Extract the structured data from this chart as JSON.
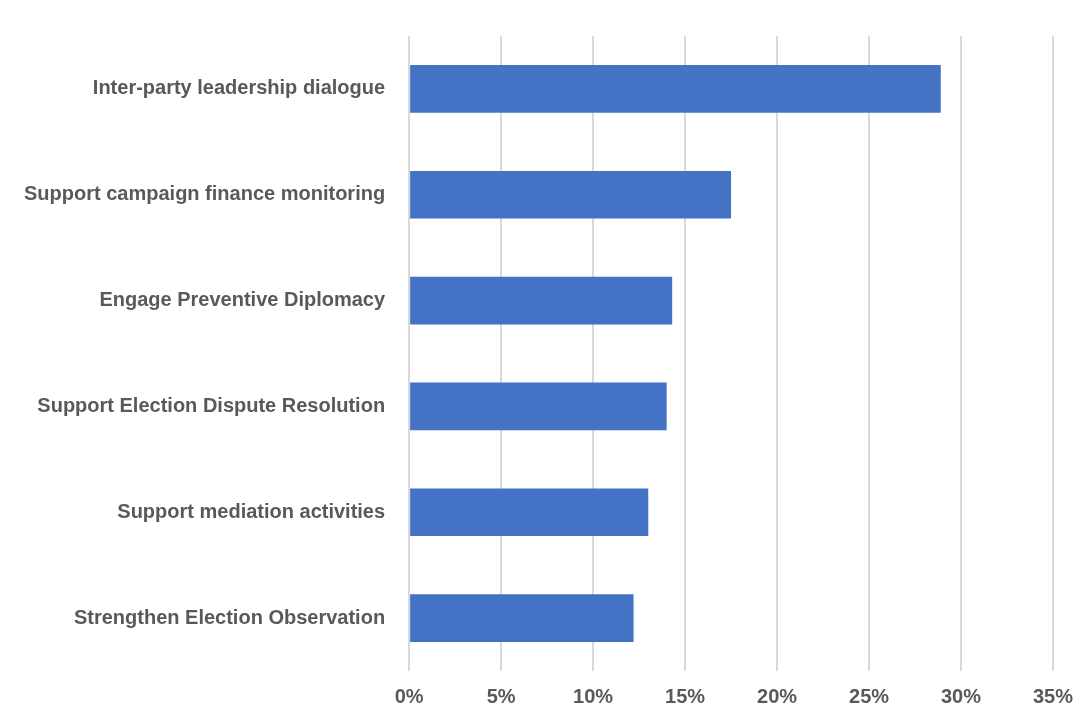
{
  "chart_data": {
    "type": "bar",
    "orientation": "horizontal",
    "categories": [
      "Inter-party leadership dialogue",
      "Support campaign finance monitoring",
      "Engage Preventive Diplomacy",
      "Support Election Dispute Resolution",
      "Support mediation activities",
      "Strengthen Election Observation"
    ],
    "values": [
      28.9,
      17.5,
      14.3,
      14.0,
      13.0,
      12.2
    ],
    "color": "#4472c4",
    "xlim": [
      0,
      35
    ],
    "xticks": [
      {
        "value": 0,
        "label": "0%"
      },
      {
        "value": 5,
        "label": "5%"
      },
      {
        "value": 10,
        "label": "10%"
      },
      {
        "value": 15,
        "label": "15%"
      },
      {
        "value": 20,
        "label": "20%"
      },
      {
        "value": 25,
        "label": "25%"
      },
      {
        "value": 30,
        "label": "30%"
      },
      {
        "value": 35,
        "label": "35%"
      }
    ],
    "grid": "x",
    "legend": false
  }
}
